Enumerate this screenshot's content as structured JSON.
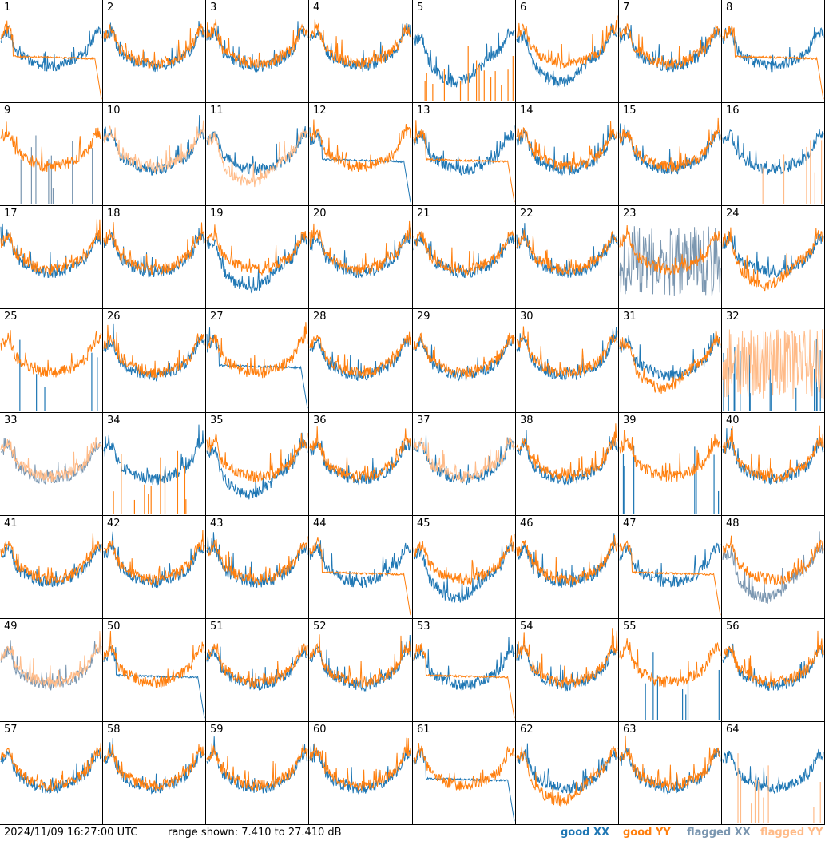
{
  "colors": {
    "good_xx": "#1f77b4",
    "good_yy": "#ff7f0e",
    "flagged_xx": "#7a96b0",
    "flagged_yy": "#ffbb88"
  },
  "footer": {
    "timestamp": "2024/11/09 16:27:00 UTC",
    "range": "range shown: 7.410 to 27.410 dB"
  },
  "chart_data": {
    "type": "line",
    "title": "",
    "grid": false,
    "range_db": [
      7.41,
      27.41
    ],
    "legend": [
      {
        "name": "good XX",
        "color": "#1f77b4",
        "label_color": "#1f77b4",
        "xx_style": "outline"
      },
      {
        "name": "good YY",
        "color": "#ff7f0e",
        "label_color": "#ff7f0e",
        "xx_style": "outline"
      },
      {
        "name": "flagged XX",
        "color": "#7a96b0",
        "label_color": "#7a96b0",
        "xx_style": "outline"
      },
      {
        "name": "flagged YY",
        "color": "#ffbb88",
        "label_color": "#ffbb88",
        "xx_style": "outline"
      }
    ],
    "panels": [
      {
        "id": "1",
        "xx": "good",
        "yy": "good",
        "xx_mode": "normal",
        "yy_mode": "drop"
      },
      {
        "id": "2",
        "xx": "good",
        "yy": "good",
        "xx_mode": "normal",
        "yy_mode": "normal"
      },
      {
        "id": "3",
        "xx": "good",
        "yy": "good",
        "xx_mode": "normal",
        "yy_mode": "normal"
      },
      {
        "id": "4",
        "xx": "good",
        "yy": "good",
        "xx_mode": "normal",
        "yy_mode": "normal"
      },
      {
        "id": "5",
        "xx": "good",
        "yy": "good",
        "xx_mode": "deep",
        "yy_mode": "spikes"
      },
      {
        "id": "6",
        "xx": "good",
        "yy": "good",
        "xx_mode": "deep",
        "yy_mode": "normal"
      },
      {
        "id": "7",
        "xx": "good",
        "yy": "good",
        "xx_mode": "normal",
        "yy_mode": "normal"
      },
      {
        "id": "8",
        "xx": "good",
        "yy": "good",
        "xx_mode": "normal",
        "yy_mode": "drop"
      },
      {
        "id": "9",
        "xx": "flagged",
        "yy": "good",
        "xx_mode": "spikes",
        "yy_mode": "normal"
      },
      {
        "id": "10",
        "xx": "good",
        "yy": "flagged",
        "xx_mode": "normal",
        "yy_mode": "normal"
      },
      {
        "id": "11",
        "xx": "good",
        "yy": "flagged",
        "xx_mode": "normal",
        "yy_mode": "deep"
      },
      {
        "id": "12",
        "xx": "good",
        "yy": "good",
        "xx_mode": "drop",
        "yy_mode": "normal"
      },
      {
        "id": "13",
        "xx": "good",
        "yy": "good",
        "xx_mode": "normal",
        "yy_mode": "drop"
      },
      {
        "id": "14",
        "xx": "good",
        "yy": "good",
        "xx_mode": "normal",
        "yy_mode": "normal"
      },
      {
        "id": "15",
        "xx": "good",
        "yy": "good",
        "xx_mode": "normal",
        "yy_mode": "normal"
      },
      {
        "id": "16",
        "xx": "good",
        "yy": "flagged",
        "xx_mode": "normal",
        "yy_mode": "spikes"
      },
      {
        "id": "17",
        "xx": "good",
        "yy": "good",
        "xx_mode": "normal",
        "yy_mode": "normal"
      },
      {
        "id": "18",
        "xx": "good",
        "yy": "good",
        "xx_mode": "normal",
        "yy_mode": "normal"
      },
      {
        "id": "19",
        "xx": "good",
        "yy": "good",
        "xx_mode": "deep",
        "yy_mode": "normal"
      },
      {
        "id": "20",
        "xx": "good",
        "yy": "good",
        "xx_mode": "normal",
        "yy_mode": "normal"
      },
      {
        "id": "21",
        "xx": "good",
        "yy": "good",
        "xx_mode": "normal",
        "yy_mode": "normal"
      },
      {
        "id": "22",
        "xx": "good",
        "yy": "good",
        "xx_mode": "normal",
        "yy_mode": "normal"
      },
      {
        "id": "23",
        "xx": "flagged",
        "yy": "good",
        "xx_mode": "noisy",
        "yy_mode": "normal"
      },
      {
        "id": "24",
        "xx": "good",
        "yy": "good",
        "xx_mode": "normal",
        "yy_mode": "deep"
      },
      {
        "id": "25",
        "xx": "good",
        "yy": "good",
        "xx_mode": "spikes",
        "yy_mode": "normal"
      },
      {
        "id": "26",
        "xx": "good",
        "yy": "good",
        "xx_mode": "normal",
        "yy_mode": "normal"
      },
      {
        "id": "27",
        "xx": "good",
        "yy": "good",
        "xx_mode": "drop",
        "yy_mode": "normal"
      },
      {
        "id": "28",
        "xx": "good",
        "yy": "good",
        "xx_mode": "normal",
        "yy_mode": "normal"
      },
      {
        "id": "29",
        "xx": "good",
        "yy": "good",
        "xx_mode": "normal",
        "yy_mode": "normal"
      },
      {
        "id": "30",
        "xx": "good",
        "yy": "good",
        "xx_mode": "normal",
        "yy_mode": "normal"
      },
      {
        "id": "31",
        "xx": "good",
        "yy": "good",
        "xx_mode": "normal",
        "yy_mode": "deep"
      },
      {
        "id": "32",
        "xx": "good",
        "yy": "flagged",
        "xx_mode": "spikes",
        "yy_mode": "noisy"
      },
      {
        "id": "33",
        "xx": "flagged",
        "yy": "flagged",
        "xx_mode": "normal",
        "yy_mode": "normal"
      },
      {
        "id": "34",
        "xx": "good",
        "yy": "good",
        "xx_mode": "normal",
        "yy_mode": "spikes"
      },
      {
        "id": "35",
        "xx": "good",
        "yy": "good",
        "xx_mode": "deep",
        "yy_mode": "normal"
      },
      {
        "id": "36",
        "xx": "good",
        "yy": "good",
        "xx_mode": "normal",
        "yy_mode": "normal"
      },
      {
        "id": "37",
        "xx": "good",
        "yy": "flagged",
        "xx_mode": "normal",
        "yy_mode": "normal"
      },
      {
        "id": "38",
        "xx": "good",
        "yy": "good",
        "xx_mode": "normal",
        "yy_mode": "normal"
      },
      {
        "id": "39",
        "xx": "good",
        "yy": "good",
        "xx_mode": "spikes",
        "yy_mode": "normal"
      },
      {
        "id": "40",
        "xx": "good",
        "yy": "good",
        "xx_mode": "normal",
        "yy_mode": "normal"
      },
      {
        "id": "41",
        "xx": "good",
        "yy": "good",
        "xx_mode": "normal",
        "yy_mode": "normal"
      },
      {
        "id": "42",
        "xx": "good",
        "yy": "good",
        "xx_mode": "normal",
        "yy_mode": "normal"
      },
      {
        "id": "43",
        "xx": "good",
        "yy": "good",
        "xx_mode": "normal",
        "yy_mode": "normal"
      },
      {
        "id": "44",
        "xx": "good",
        "yy": "good",
        "xx_mode": "normal",
        "yy_mode": "drop"
      },
      {
        "id": "45",
        "xx": "good",
        "yy": "good",
        "xx_mode": "deep",
        "yy_mode": "normal"
      },
      {
        "id": "46",
        "xx": "good",
        "yy": "good",
        "xx_mode": "normal",
        "yy_mode": "normal"
      },
      {
        "id": "47",
        "xx": "good",
        "yy": "good",
        "xx_mode": "normal",
        "yy_mode": "drop"
      },
      {
        "id": "48",
        "xx": "flagged",
        "yy": "good",
        "xx_mode": "deep",
        "yy_mode": "normal"
      },
      {
        "id": "49",
        "xx": "flagged",
        "yy": "flagged",
        "xx_mode": "normal",
        "yy_mode": "normal"
      },
      {
        "id": "50",
        "xx": "good",
        "yy": "good",
        "xx_mode": "drop",
        "yy_mode": "normal"
      },
      {
        "id": "51",
        "xx": "good",
        "yy": "good",
        "xx_mode": "normal",
        "yy_mode": "normal"
      },
      {
        "id": "52",
        "xx": "good",
        "yy": "good",
        "xx_mode": "normal",
        "yy_mode": "normal"
      },
      {
        "id": "53",
        "xx": "good",
        "yy": "good",
        "xx_mode": "normal",
        "yy_mode": "drop"
      },
      {
        "id": "54",
        "xx": "good",
        "yy": "good",
        "xx_mode": "normal",
        "yy_mode": "normal"
      },
      {
        "id": "55",
        "xx": "good",
        "yy": "good",
        "xx_mode": "spikes",
        "yy_mode": "normal"
      },
      {
        "id": "56",
        "xx": "good",
        "yy": "good",
        "xx_mode": "normal",
        "yy_mode": "normal"
      },
      {
        "id": "57",
        "xx": "good",
        "yy": "good",
        "xx_mode": "normal",
        "yy_mode": "normal"
      },
      {
        "id": "58",
        "xx": "good",
        "yy": "good",
        "xx_mode": "normal",
        "yy_mode": "normal"
      },
      {
        "id": "59",
        "xx": "good",
        "yy": "good",
        "xx_mode": "normal",
        "yy_mode": "normal"
      },
      {
        "id": "60",
        "xx": "good",
        "yy": "good",
        "xx_mode": "normal",
        "yy_mode": "normal"
      },
      {
        "id": "61",
        "xx": "good",
        "yy": "good",
        "xx_mode": "drop",
        "yy_mode": "normal"
      },
      {
        "id": "62",
        "xx": "good",
        "yy": "good",
        "xx_mode": "normal",
        "yy_mode": "deep"
      },
      {
        "id": "63",
        "xx": "good",
        "yy": "good",
        "xx_mode": "normal",
        "yy_mode": "normal"
      },
      {
        "id": "64",
        "xx": "good",
        "yy": "flagged",
        "xx_mode": "normal",
        "yy_mode": "spikes"
      }
    ]
  }
}
